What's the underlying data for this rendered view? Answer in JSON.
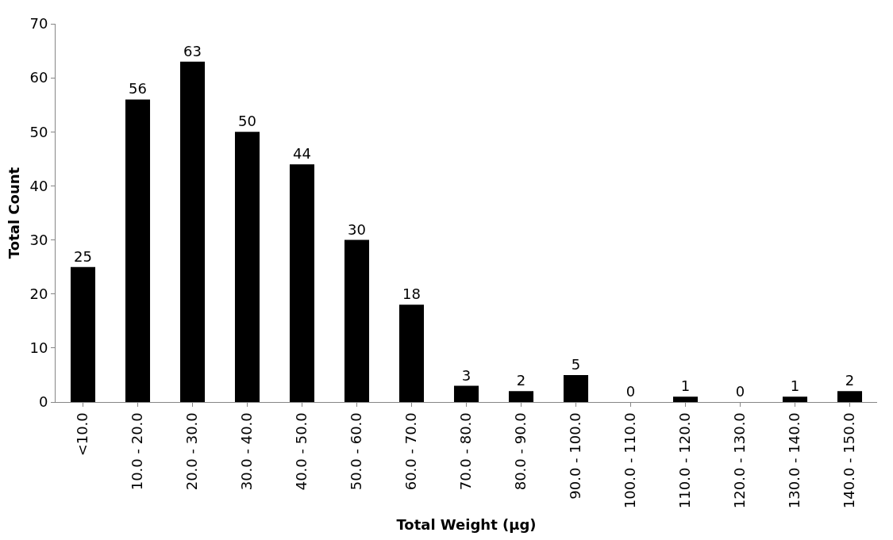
{
  "chart_data": {
    "type": "bar",
    "xlabel": "Total Weight (µg)",
    "ylabel": "Total Count",
    "categories": [
      "<10.0",
      "10.0 - 20.0",
      "20.0 - 30.0",
      "30.0 - 40.0",
      "40.0 - 50.0",
      "50.0 - 60.0",
      "60.0 - 70.0",
      "70.0 - 80.0",
      "80.0 - 90.0",
      "90.0 - 100.0",
      "100.0 - 110.0",
      "110.0 - 120.0",
      "120.0 - 130.0",
      "130.0 - 140.0",
      "140.0 - 150.0"
    ],
    "values": [
      25,
      56,
      63,
      50,
      44,
      30,
      18,
      3,
      2,
      5,
      0,
      1,
      0,
      1,
      2
    ],
    "color": "#000000",
    "ylim": [
      0,
      70
    ],
    "yticks": [
      0,
      10,
      20,
      30,
      40,
      50,
      60,
      70
    ],
    "data_labels": true,
    "legend": false
  }
}
